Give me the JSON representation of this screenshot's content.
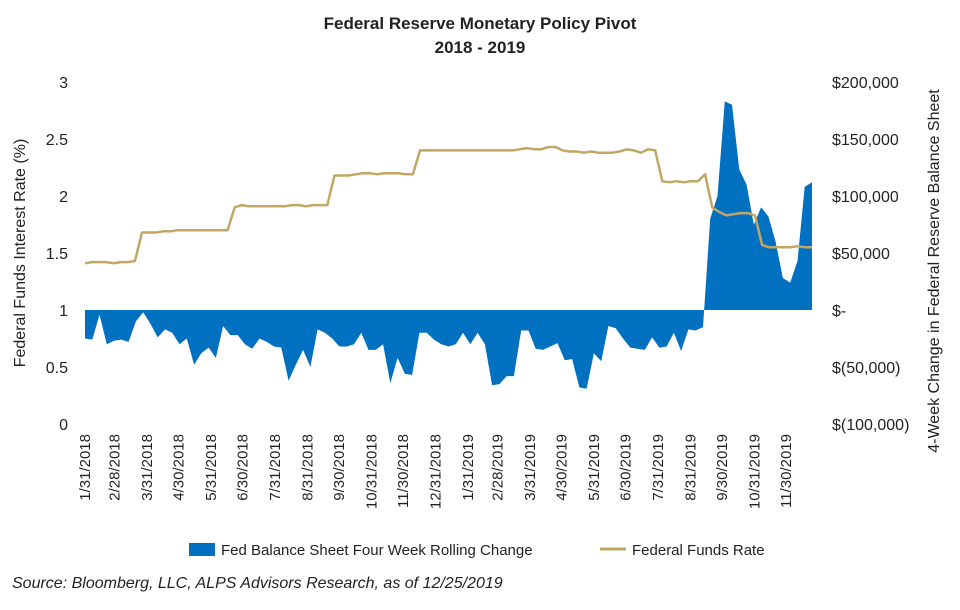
{
  "chart_data": {
    "type": "line",
    "title": "Federal Reserve Monetary  Policy Pivot",
    "subtitle": "2018 - 2019",
    "ylabel": "Federal Funds Interest Rate (%)",
    "y2label": "4-Week Change in Federal Reserve Balance Sheet",
    "ylim": [
      0,
      3
    ],
    "y2lim": [
      -100000,
      200000
    ],
    "yticks": [
      "0",
      "0.5",
      "1",
      "1.5",
      "2",
      "2.5",
      "3"
    ],
    "y2ticks": [
      "$(100,000)",
      "$(50,000)",
      "$-",
      "$50,000",
      "$100,000",
      "$150,000",
      "$200,000"
    ],
    "xtick_labels": [
      "1/31/2018",
      "2/28/2018",
      "3/31/2018",
      "4/30/2018",
      "5/31/2018",
      "6/30/2018",
      "7/31/2018",
      "8/31/2018",
      "9/30/2018",
      "10/31/2018",
      "11/30/2018",
      "12/31/2018",
      "1/31/2019",
      "2/28/2019",
      "3/31/2019",
      "4/30/2019",
      "5/31/2019",
      "6/30/2019",
      "7/31/2019",
      "8/31/2019",
      "9/30/2019",
      "10/31/2019",
      "11/30/2019"
    ],
    "x_range": [
      "1/31/2018",
      "12/25/2019"
    ],
    "series": [
      {
        "name": "Fed Balance Sheet Four Week Rolling Change",
        "type": "area",
        "axis": "right",
        "color": "#0070c0",
        "values": [
          -25000,
          -26000,
          -4000,
          -30000,
          -27000,
          -26000,
          -28000,
          -10000,
          -2000,
          -12000,
          -24000,
          -17000,
          -20000,
          -30000,
          -25000,
          -48000,
          -38000,
          -33000,
          -42000,
          -14000,
          -22000,
          -22000,
          -30000,
          -34000,
          -25000,
          -28000,
          -32000,
          -33000,
          -62000,
          -48000,
          -35000,
          -50000,
          -17000,
          -20000,
          -25000,
          -32000,
          -32000,
          -30000,
          -20000,
          -35000,
          -35000,
          -30000,
          -64000,
          -42000,
          -56000,
          -57000,
          -20000,
          -20000,
          -26000,
          -30000,
          -32000,
          -30000,
          -20000,
          -30000,
          -20000,
          -30000,
          -66000,
          -65000,
          -58000,
          -58000,
          -18000,
          -18000,
          -34000,
          -35000,
          -32000,
          -29000,
          -44000,
          -43000,
          -68000,
          -69000,
          -38000,
          -45000,
          -14000,
          -16000,
          -25000,
          -33000,
          -34000,
          -35000,
          -24000,
          -33000,
          -32000,
          -20000,
          -36000,
          -17000,
          -18000,
          -15000,
          80000,
          100000,
          183000,
          180000,
          123000,
          110000,
          75000,
          90000,
          82000,
          60000,
          28000,
          24000,
          43000,
          108000,
          112000
        ]
      },
      {
        "name": "Federal Funds Rate",
        "type": "line",
        "axis": "left",
        "color": "#c2a764",
        "values": [
          1.41,
          1.42,
          1.42,
          1.42,
          1.41,
          1.42,
          1.42,
          1.43,
          1.68,
          1.68,
          1.68,
          1.69,
          1.69,
          1.7,
          1.7,
          1.7,
          1.7,
          1.7,
          1.7,
          1.7,
          1.7,
          1.9,
          1.92,
          1.91,
          1.91,
          1.91,
          1.91,
          1.91,
          1.91,
          1.92,
          1.92,
          1.91,
          1.92,
          1.92,
          1.92,
          2.18,
          2.18,
          2.18,
          2.19,
          2.2,
          2.2,
          2.19,
          2.2,
          2.2,
          2.2,
          2.19,
          2.19,
          2.4,
          2.4,
          2.4,
          2.4,
          2.4,
          2.4,
          2.4,
          2.4,
          2.4,
          2.4,
          2.4,
          2.4,
          2.4,
          2.4,
          2.41,
          2.42,
          2.41,
          2.41,
          2.43,
          2.43,
          2.4,
          2.39,
          2.39,
          2.38,
          2.39,
          2.38,
          2.38,
          2.38,
          2.39,
          2.41,
          2.4,
          2.38,
          2.41,
          2.4,
          2.13,
          2.12,
          2.13,
          2.12,
          2.13,
          2.13,
          2.19,
          1.9,
          1.86,
          1.83,
          1.84,
          1.85,
          1.85,
          1.83,
          1.57,
          1.55,
          1.55,
          1.55,
          1.55,
          1.56,
          1.55,
          1.55
        ]
      }
    ],
    "legend_position": "bottom",
    "grid": false
  },
  "source_note": "Source: Bloomberg, LLC, ALPS Advisors Research, as of 12/25/2019"
}
